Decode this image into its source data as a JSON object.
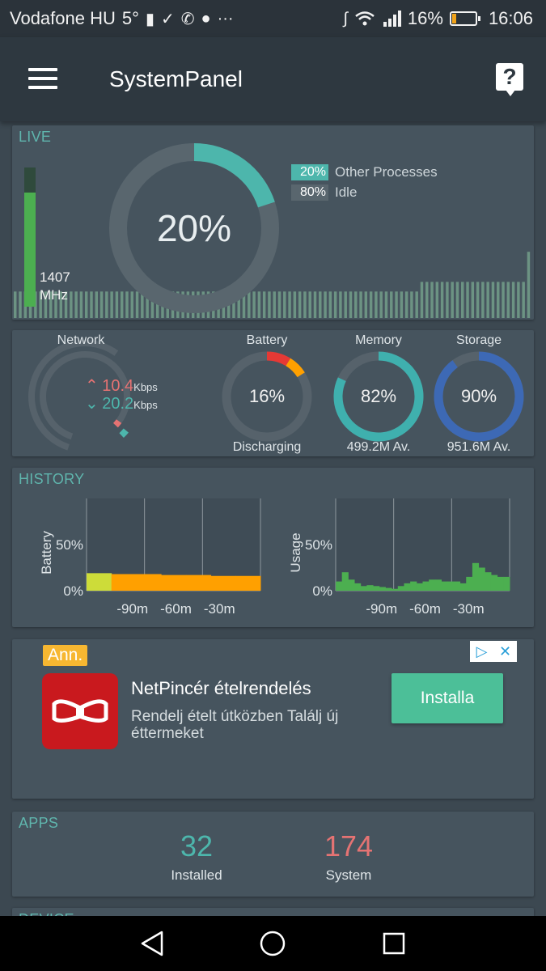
{
  "status_bar": {
    "carrier": "Vodafone HU",
    "temperature": "5°",
    "battery_pct": "16%",
    "battery_level": 0.16,
    "time": "16:06"
  },
  "app_bar": {
    "title": "SystemPanel"
  },
  "live": {
    "label": "LIVE",
    "cpu_pct": "20%",
    "cpu_fraction": 0.2,
    "freq_value": "1407",
    "freq_unit": "MHz",
    "freq_level": 0.82,
    "legend": [
      {
        "pct": "20%",
        "label": "Other Processes",
        "color": "#4db6ac"
      },
      {
        "pct": "80%",
        "label": "Idle",
        "color": "#59666e"
      }
    ],
    "history_bars": [
      0.22,
      0.22,
      0.22,
      0.22,
      0.22,
      0.22,
      0.22,
      0.22,
      0.22,
      0.22,
      0.22,
      0.22,
      0.22,
      0.22,
      0.22,
      0.22,
      0.22,
      0.22,
      0.22,
      0.22,
      0.22,
      0.22,
      0.22,
      0.22,
      0.22,
      0.22,
      0.22,
      0.22,
      0.22,
      0.22,
      0.22,
      0.22,
      0.22,
      0.22,
      0.22,
      0.22,
      0.22,
      0.22,
      0.22,
      0.22,
      0.22,
      0.22,
      0.22,
      0.22,
      0.22,
      0.22,
      0.22,
      0.22,
      0.22,
      0.22,
      0.22,
      0.22,
      0.22,
      0.22,
      0.22,
      0.22,
      0.22,
      0.22,
      0.22,
      0.22,
      0.22,
      0.22,
      0.22,
      0.22,
      0.22,
      0.22,
      0.22,
      0.22,
      0.22,
      0.22,
      0.22,
      0.22,
      0.22,
      0.22,
      0.22,
      0.22,
      0.22,
      0.22,
      0.22,
      0.22,
      0.3,
      0.3,
      0.3,
      0.3,
      0.3,
      0.3,
      0.3,
      0.3,
      0.3,
      0.3,
      0.3,
      0.3,
      0.3,
      0.3,
      0.3,
      0.3,
      0.3,
      0.3,
      0.3,
      0.3,
      0.3,
      0.55
    ]
  },
  "stats": {
    "network": {
      "label": "Network",
      "up_value": "10.4",
      "down_value": "20.2",
      "unit": "Kbps",
      "up_color": "#e57373",
      "down_color": "#4db6ac"
    },
    "battery": {
      "label": "Battery",
      "pct": "16%",
      "fraction": 0.16,
      "status": "Discharging",
      "color_a": "#e53935",
      "color_b": "#ffa000"
    },
    "memory": {
      "label": "Memory",
      "pct": "82%",
      "fraction": 0.82,
      "available": "499.2M Av.",
      "color": "#3fb0ae"
    },
    "storage": {
      "label": "Storage",
      "pct": "90%",
      "fraction": 0.9,
      "available": "951.6M Av.",
      "color": "#3d69b5"
    }
  },
  "history": {
    "label": "HISTORY",
    "battery_chart": {
      "ylabel": "Battery",
      "yticks": [
        "50%",
        "0%"
      ],
      "xticks": [
        "-90m",
        "-60m",
        "-30m"
      ],
      "values": [
        0.19,
        0.18,
        0.18,
        0.17,
        0.17,
        0.16,
        0.16
      ]
    },
    "usage_chart": {
      "ylabel": "Usage",
      "yticks": [
        "50%",
        "0%"
      ],
      "xticks": [
        "-90m",
        "-60m",
        "-30m"
      ],
      "values": [
        0.1,
        0.2,
        0.12,
        0.08,
        0.05,
        0.06,
        0.05,
        0.04,
        0.03,
        0.02,
        0.05,
        0.08,
        0.1,
        0.08,
        0.1,
        0.12,
        0.12,
        0.1,
        0.1,
        0.1,
        0.08,
        0.15,
        0.3,
        0.25,
        0.2,
        0.17,
        0.15,
        0.15
      ]
    }
  },
  "ad": {
    "badge": "Ann.",
    "title": "NetPincér ételrendelés",
    "description": "Rendelj ételt útközben Találj új éttermeket",
    "install_label": "Installa"
  },
  "apps": {
    "label": "APPS",
    "installed_count": "32",
    "installed_label": "Installed",
    "system_count": "174",
    "system_label": "System",
    "installed_color": "#4db6ac",
    "system_color": "#e57373"
  },
  "next_section_label": "DEVICE"
}
